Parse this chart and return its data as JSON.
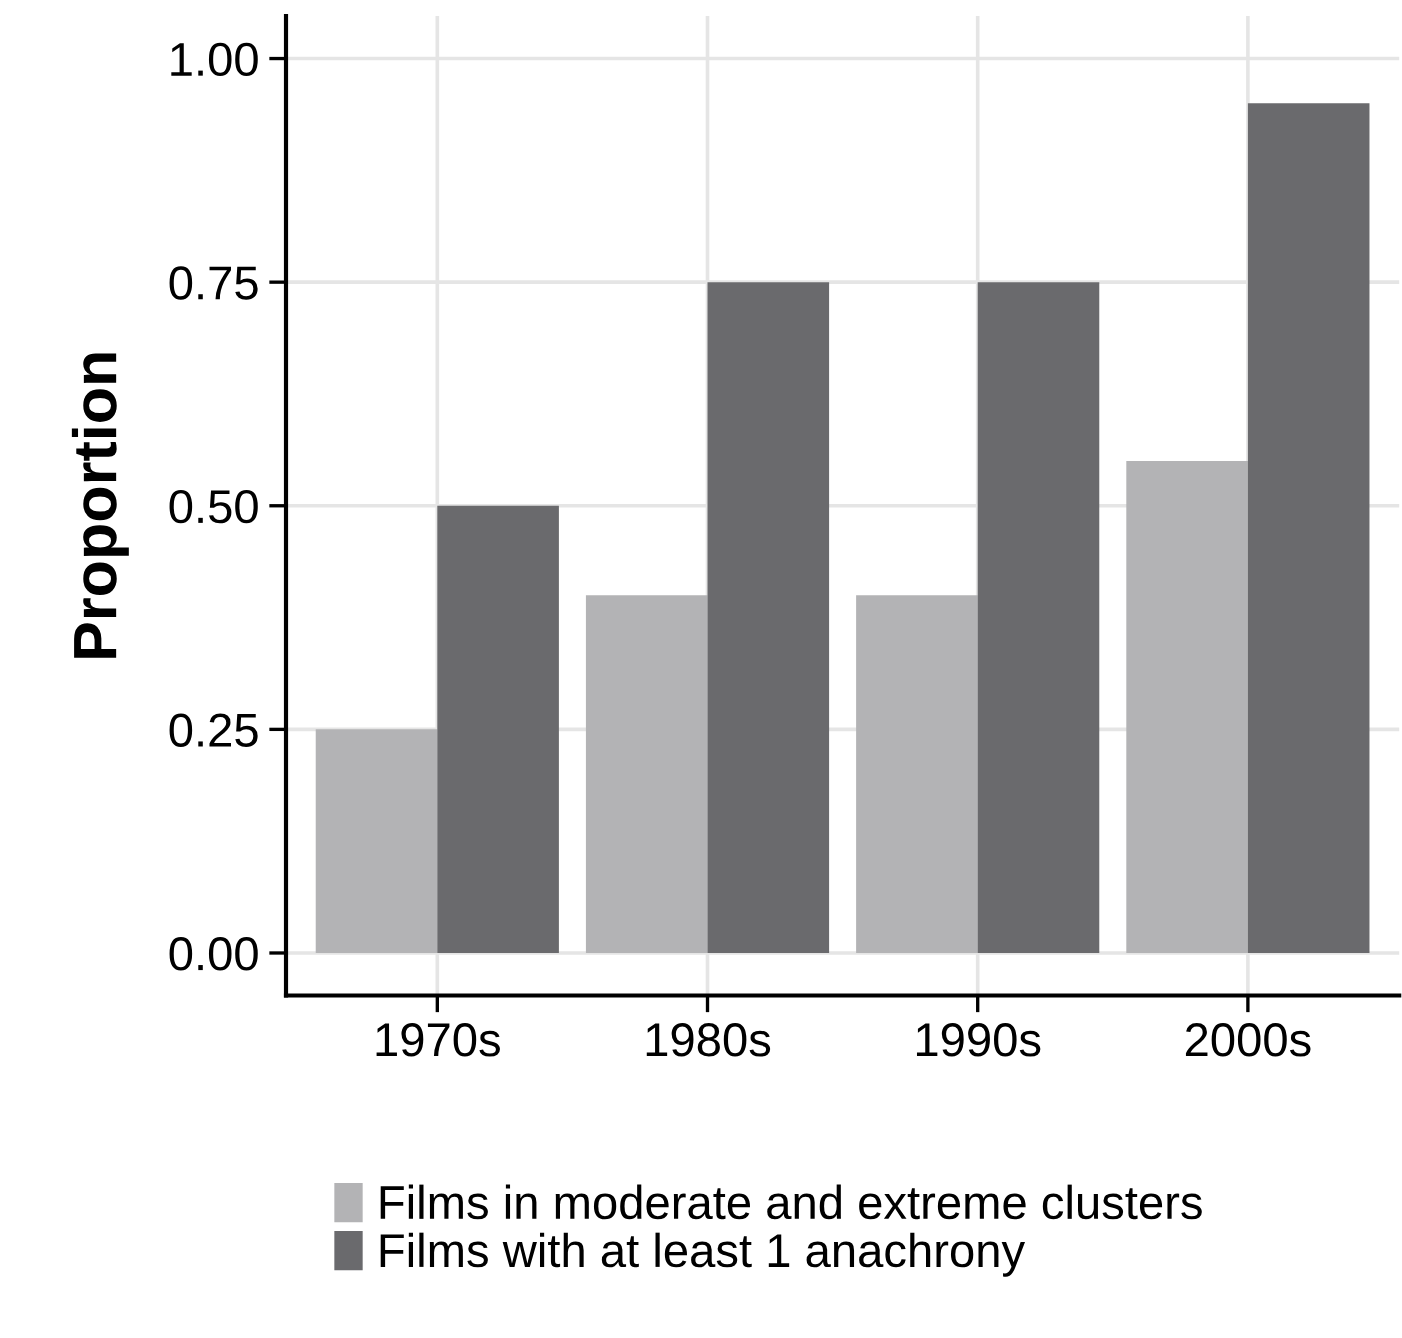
{
  "chart_data": {
    "type": "bar",
    "ylabel": "Proportion",
    "categories": [
      "1970s",
      "1980s",
      "1990s",
      "2000s"
    ],
    "series": [
      {
        "name": "Films in moderate and extreme clusters",
        "color": "#b3b3b5",
        "values": [
          0.25,
          0.4,
          0.4,
          0.55
        ]
      },
      {
        "name": "Films with at least 1 anachrony",
        "color": "#6a6a6d",
        "values": [
          0.5,
          0.75,
          0.75,
          0.95
        ]
      }
    ],
    "ylim": [
      -0.0475,
      1.0475
    ],
    "yticks": [
      {
        "value": 0,
        "label": "0.00"
      },
      {
        "value": 0.25,
        "label": "0.25"
      },
      {
        "value": 0.5,
        "label": "0.50"
      },
      {
        "value": 0.75,
        "label": "0.75"
      },
      {
        "value": 1,
        "label": "1.00"
      }
    ],
    "grid": true,
    "legend": "bottom"
  }
}
